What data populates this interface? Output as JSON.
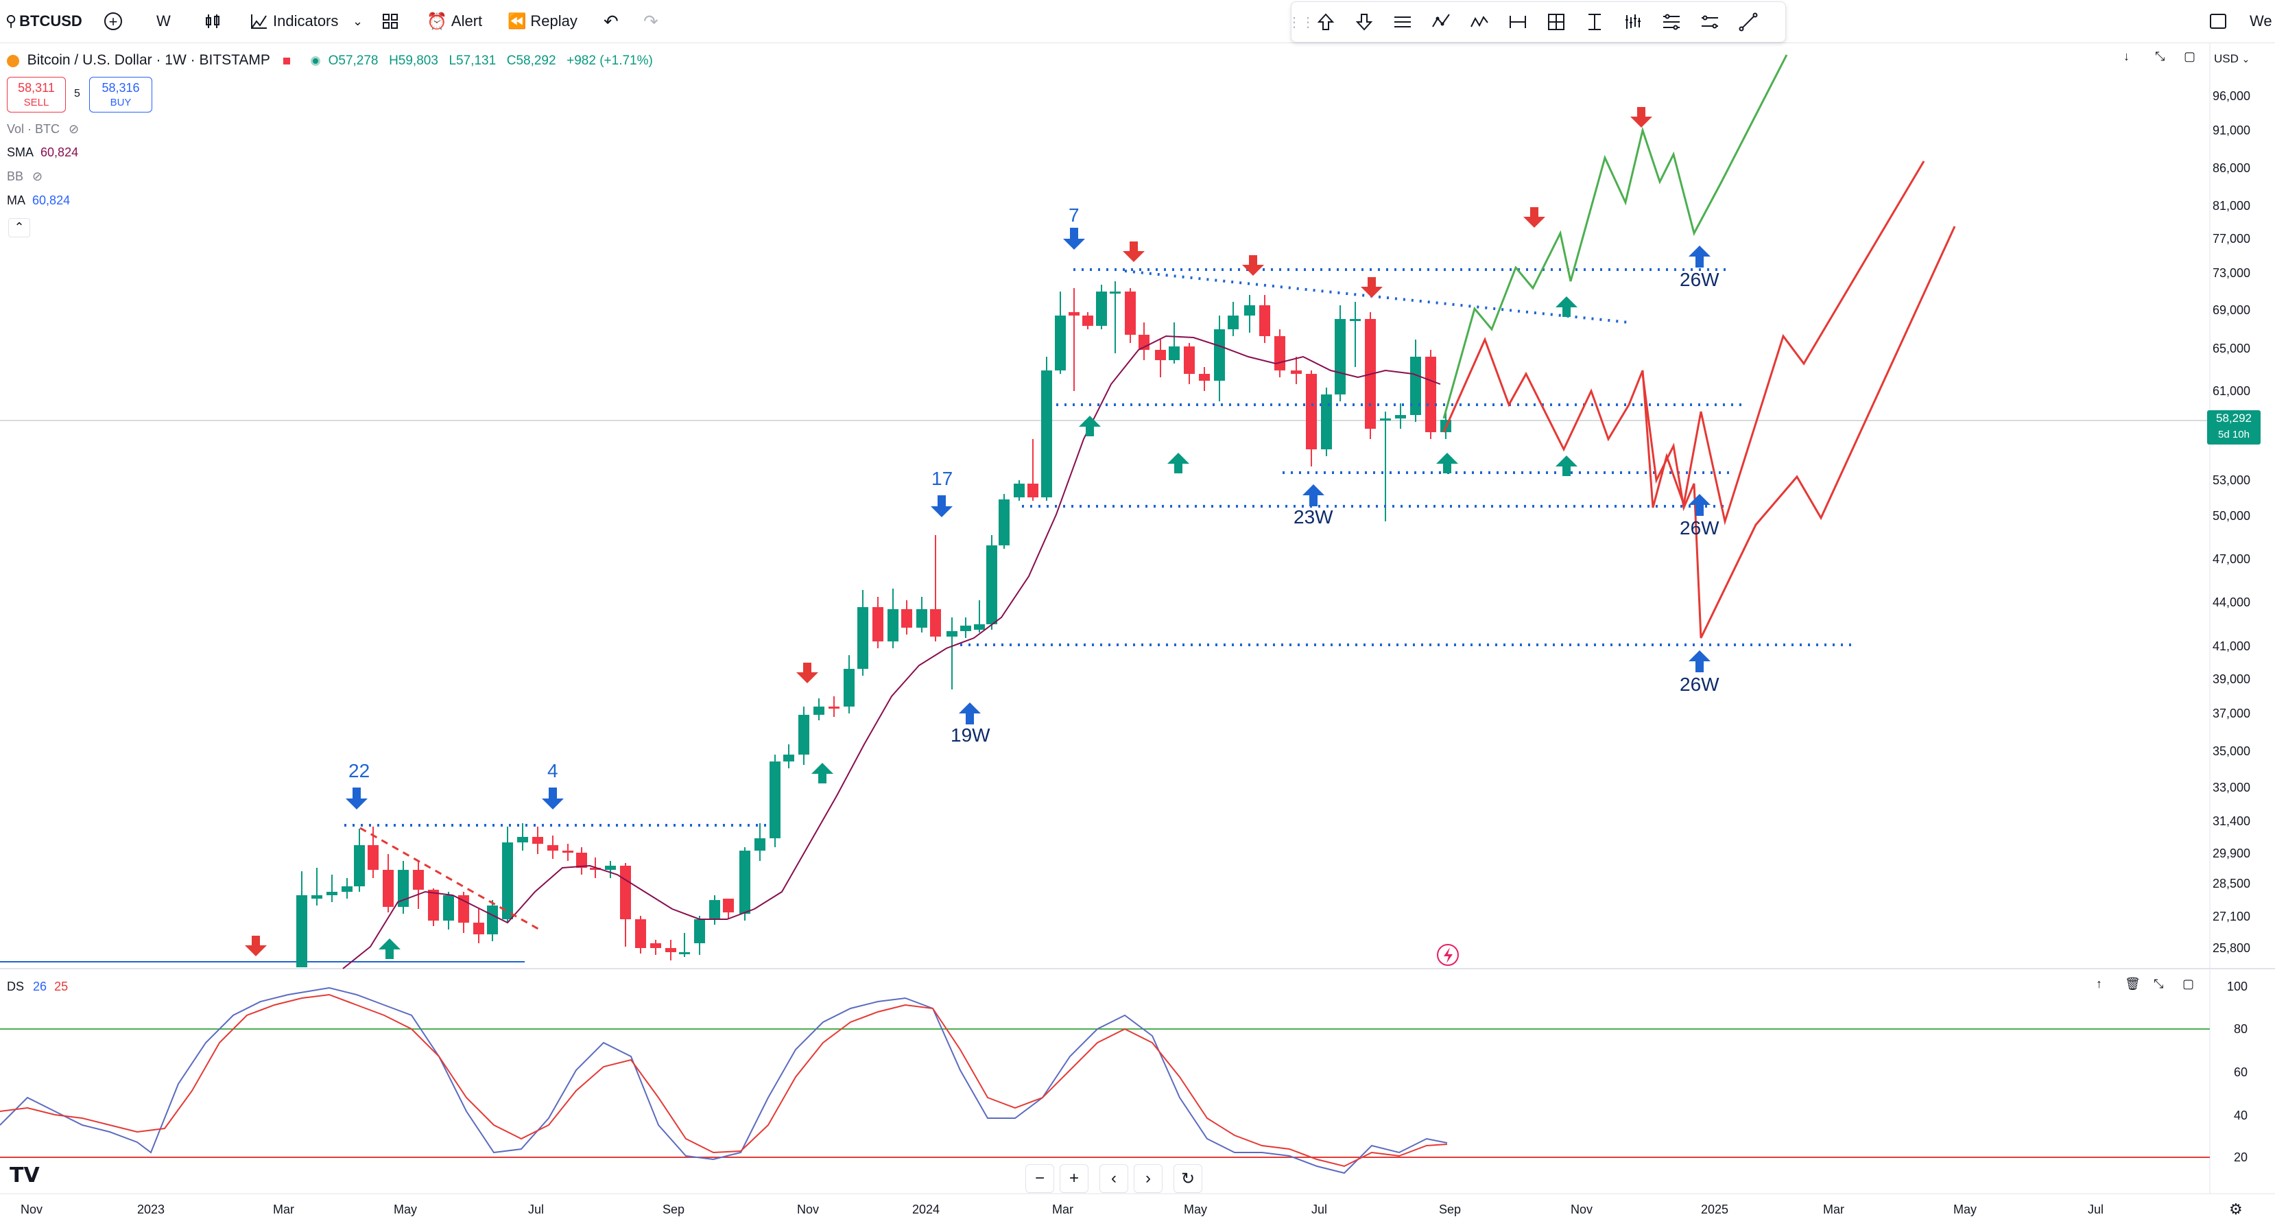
{
  "toolbar": {
    "symbol": "BTCUSD",
    "interval": "W",
    "indicators_label": "Indicators",
    "alert_label": "Alert",
    "replay_label": "Replay",
    "right_label": "We"
  },
  "legend": {
    "title": "Bitcoin / U.S. Dollar · 1W · BITSTAMP",
    "open": "O57,278",
    "high": "H59,803",
    "low": "L57,131",
    "close": "C58,292",
    "change": "+982 (+1.71%)",
    "sell_price": "58,311",
    "sell_label": "SELL",
    "spread": "5",
    "buy_price": "58,316",
    "buy_label": "BUY"
  },
  "indicators": {
    "vol": "Vol · BTC",
    "sma_label": "SMA",
    "sma_value": "60,824",
    "bb": "BB",
    "ma_label": "MA",
    "ma_value": "60,824"
  },
  "price_axis": {
    "currency": "USD",
    "ticks": [
      "96,000",
      "91,000",
      "86,000",
      "81,000",
      "77,000",
      "73,000",
      "69,000",
      "65,000",
      "61,000",
      "53,000",
      "50,000",
      "47,000",
      "44,000",
      "41,000",
      "39,000",
      "37,000",
      "35,000",
      "33,000",
      "31,400",
      "29,900",
      "28,500",
      "27,100",
      "25,800"
    ],
    "current_price": "58,292",
    "countdown": "5d 10h"
  },
  "time_axis": {
    "ticks": [
      "Nov",
      "2023",
      "Mar",
      "May",
      "Jul",
      "Sep",
      "Nov",
      "2024",
      "Mar",
      "May",
      "Jul",
      "Sep",
      "Nov",
      "2025",
      "Mar",
      "May",
      "Jul"
    ]
  },
  "oscillator": {
    "name": "DS",
    "param1": "26",
    "param2": "25",
    "ticks": [
      "100",
      "80",
      "60",
      "40",
      "20"
    ]
  },
  "annotations": {
    "count_22": "22",
    "count_4": "4",
    "count_17": "17",
    "count_7": "7",
    "cycle_19w": "19W",
    "cycle_23w": "23W",
    "cycle_26w_a": "26W",
    "cycle_26w_b": "26W",
    "cycle_26w_c": "26W"
  },
  "colors": {
    "up": "#089981",
    "down": "#f23645",
    "sma": "#880e4f",
    "blue_arrow": "#2962ff",
    "green_path": "#4caf50",
    "red_path": "#e53935",
    "dotted": "#1e64d2"
  }
}
